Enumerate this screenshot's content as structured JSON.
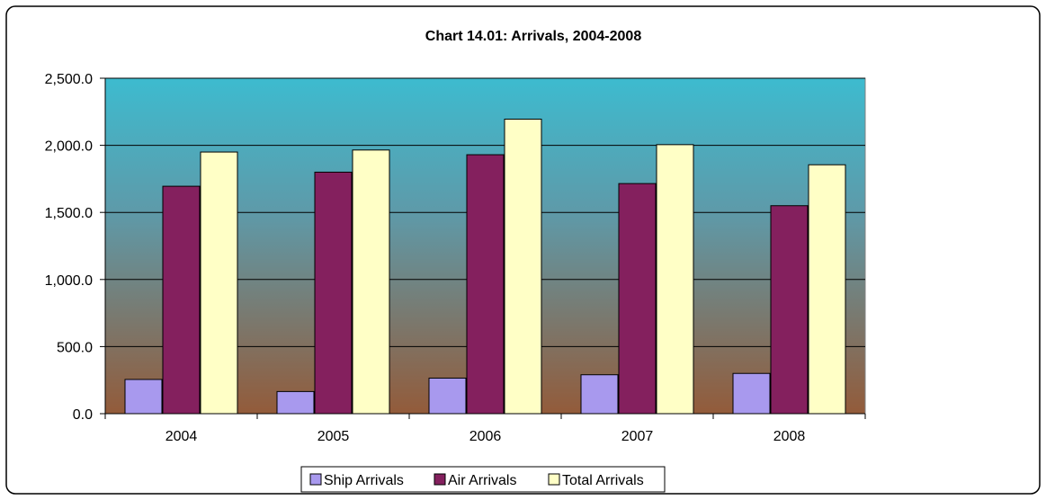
{
  "chart_data": {
    "type": "bar",
    "title": "Chart 14.01:  Arrivals, 2004-2008",
    "xlabel": "",
    "ylabel": "",
    "categories": [
      "2004",
      "2005",
      "2006",
      "2007",
      "2008"
    ],
    "series": [
      {
        "name": "Ship Arrivals",
        "color": "#a899ee",
        "values": [
          255,
          165,
          265,
          290,
          300
        ]
      },
      {
        "name": "Air Arrivals",
        "color": "#84205e",
        "values": [
          1695,
          1800,
          1930,
          1715,
          1550
        ]
      },
      {
        "name": "Total Arrivals",
        "color": "#ffffc6",
        "values": [
          1950,
          1965,
          2195,
          2005,
          1855
        ]
      }
    ],
    "ylim": [
      0,
      2500
    ],
    "yticks": [
      "0.0",
      "500.0",
      "1,000.0",
      "1,500.0",
      "2,000.0",
      "2,500.0"
    ],
    "ytick_values": [
      0,
      500,
      1000,
      1500,
      2000,
      2500
    ],
    "grid": true,
    "legend_position": "bottom",
    "plot_background_top": "#3dbbcf",
    "plot_background_bottom": "#935b3a"
  }
}
